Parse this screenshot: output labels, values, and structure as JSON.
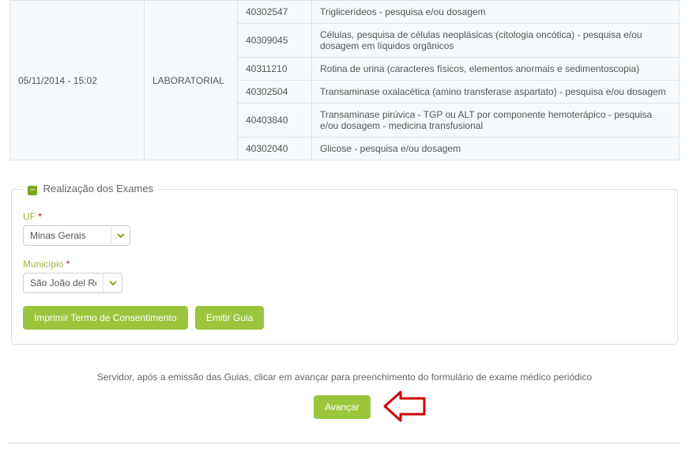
{
  "exam_table": {
    "datetime": "05/11/2014 - 15:02",
    "category": "LABORATORIAL",
    "rows": [
      {
        "code": "40302547",
        "desc": "Triglicerídeos - pesquisa e/ou dosagem"
      },
      {
        "code": "40309045",
        "desc": "Células, pesquisa de células neoplásicas (citologia oncótica) - pesquisa e/ou dosagem em líquidos orgânicos"
      },
      {
        "code": "40311210",
        "desc": "Rotina de urina (caracteres físicos, elementos anormais e sedimentoscopia)"
      },
      {
        "code": "40302504",
        "desc": "Transaminase oxalacética (amino transferase aspartato) - pesquisa e/ou dosagem"
      },
      {
        "code": "40403840",
        "desc": "Transaminase pirúvica - TGP ou ALT por componente hemoterápico - pesquisa e/ou dosagem - medicina transfusional"
      },
      {
        "code": "40302040",
        "desc": "Glicose - pesquisa e/ou dosagem"
      }
    ]
  },
  "panel": {
    "title": "Realização dos Exames",
    "uf_label": "UF",
    "uf_value": "Minas Gerais",
    "municipio_label": "Município",
    "municipio_value": "São João del Rei",
    "btn_print": "Imprimir Termo de Consentimento",
    "btn_emit": "Emitir Guia"
  },
  "footer": {
    "note": "Servidor, após a emissão das Guias, clicar em avançar para preenchimento do formulário de exame médico periódico",
    "advance": "Avançar"
  },
  "colors": {
    "accent": "#9bc53d",
    "border": "#d8e4ec",
    "arrow": "#cc0000"
  }
}
